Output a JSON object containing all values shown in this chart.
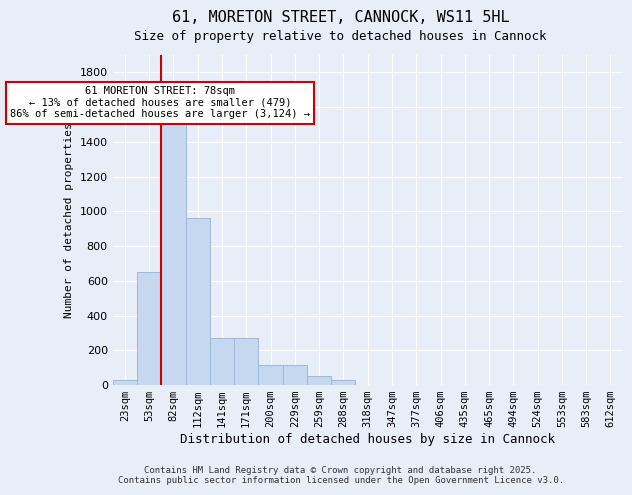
{
  "title": "61, MORETON STREET, CANNOCK, WS11 5HL",
  "subtitle": "Size of property relative to detached houses in Cannock",
  "xlabel": "Distribution of detached houses by size in Cannock",
  "ylabel": "Number of detached properties",
  "bar_color": "#c5d8f0",
  "bar_edge_color": "#a0b8d8",
  "background_color": "#e8eef8",
  "grid_color": "#ffffff",
  "categories": [
    "23sqm",
    "53sqm",
    "82sqm",
    "112sqm",
    "141sqm",
    "171sqm",
    "200sqm",
    "229sqm",
    "259sqm",
    "288sqm",
    "318sqm",
    "347sqm",
    "377sqm",
    "406sqm",
    "435sqm",
    "465sqm",
    "494sqm",
    "524sqm",
    "553sqm",
    "583sqm",
    "612sqm"
  ],
  "values": [
    30,
    650,
    1580,
    960,
    270,
    270,
    115,
    115,
    50,
    30,
    0,
    0,
    0,
    0,
    0,
    0,
    0,
    0,
    0,
    0,
    0
  ],
  "ylim": [
    0,
    1900
  ],
  "yticks": [
    0,
    200,
    400,
    600,
    800,
    1000,
    1200,
    1400,
    1600,
    1800
  ],
  "property_line_x": 1,
  "annotation_text": "61 MORETON STREET: 78sqm\n← 13% of detached houses are smaller (479)\n86% of semi-detached houses are larger (3,124) →",
  "annotation_box_color": "#ffffff",
  "annotation_box_edge_color": "#cc0000",
  "red_line_color": "#cc0000",
  "footer_line1": "Contains HM Land Registry data © Crown copyright and database right 2025.",
  "footer_line2": "Contains public sector information licensed under the Open Government Licence v3.0."
}
